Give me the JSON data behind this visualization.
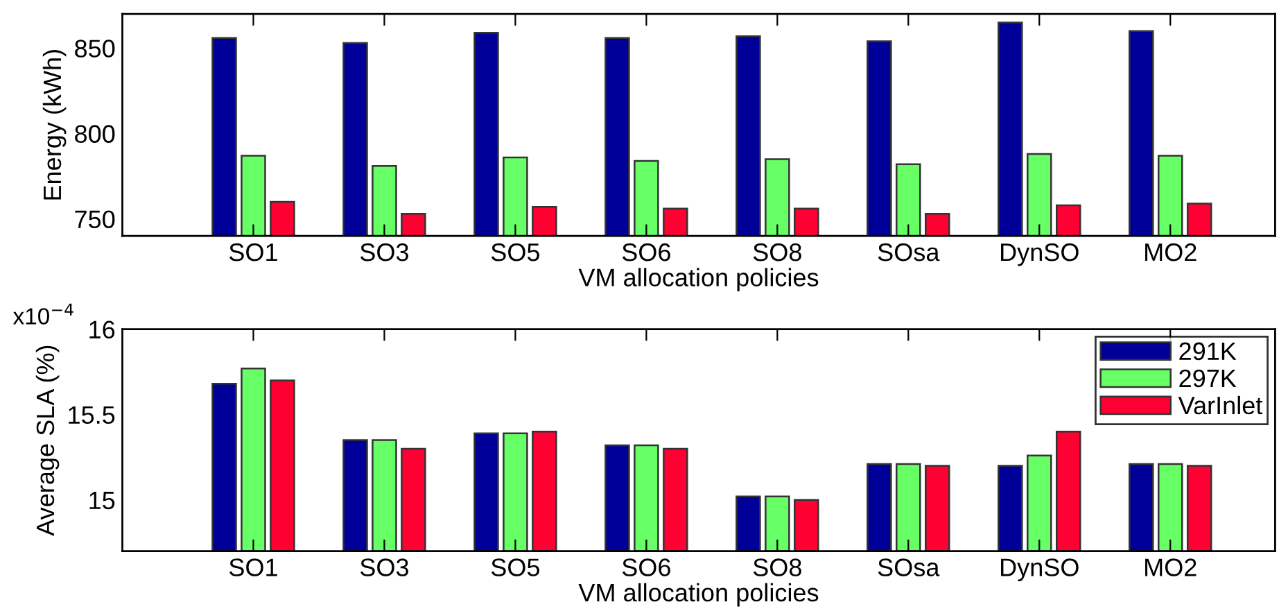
{
  "chart_data": [
    {
      "type": "bar",
      "ylabel": "Energy (kWh)",
      "xlabel": "VM allocation policies",
      "categories": [
        "SO1",
        "SO3",
        "SO5",
        "SO6",
        "SO8",
        "SOsa",
        "DynSO",
        "MO2"
      ],
      "series": [
        {
          "color": "#000099",
          "values": [
            856,
            853,
            859,
            856,
            857,
            854,
            865,
            860
          ]
        },
        {
          "color": "#66ff66",
          "values": [
            787,
            781,
            786,
            784,
            785,
            782,
            788,
            787
          ]
        },
        {
          "color": "#ff0033",
          "values": [
            760,
            753,
            757,
            756,
            756,
            753,
            758,
            759
          ]
        }
      ],
      "ylim": [
        740,
        870
      ],
      "yticks": [
        750,
        800,
        850
      ],
      "grid": false,
      "legend": false
    },
    {
      "type": "bar",
      "ylabel": "Average SLA (%)",
      "xlabel": "VM allocation policies",
      "annotations": [
        "x10$^{−4}$"
      ],
      "categories": [
        "SO1",
        "SO3",
        "SO5",
        "SO6",
        "SO8",
        "SOsa",
        "DynSO",
        "MO2"
      ],
      "series": [
        {
          "name": "291K",
          "color": "#000099",
          "values": [
            15.68,
            15.35,
            15.39,
            15.32,
            15.02,
            15.21,
            15.2,
            15.21
          ]
        },
        {
          "name": "297K",
          "color": "#66ff66",
          "values": [
            15.77,
            15.35,
            15.39,
            15.32,
            15.02,
            15.21,
            15.26,
            15.21
          ]
        },
        {
          "name": "VarInlet",
          "color": "#ff0033",
          "values": [
            15.7,
            15.3,
            15.4,
            15.3,
            15.0,
            15.2,
            15.4,
            15.2
          ]
        }
      ],
      "ylim": [
        14.7,
        16
      ],
      "yticks": [
        15,
        15.5,
        16
      ],
      "grid": false,
      "legend": "top right"
    }
  ]
}
